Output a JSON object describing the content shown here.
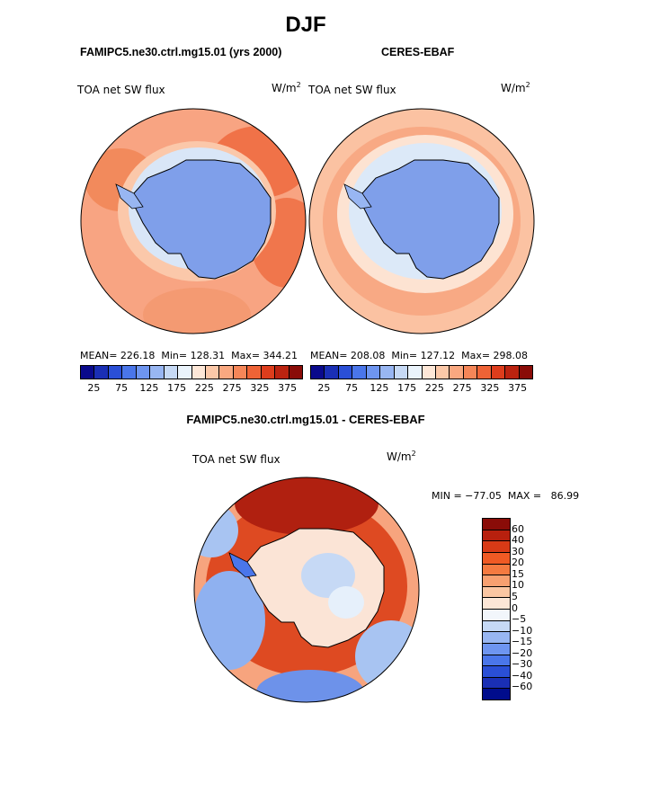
{
  "figure": {
    "season_title": "DJF",
    "units": "W/m",
    "units_exp": "2"
  },
  "panels": [
    {
      "title": "FAMIPC5.ne30.ctrl.mg15.01 (yrs 2000)",
      "variable": "TOA net SW flux",
      "stats": "MEAN= 226.18  Min= 128.31  Max= 344.21"
    },
    {
      "title": "CERES-EBAF",
      "variable": "TOA net SW flux",
      "stats": "MEAN= 208.08  Min= 127.12  Max= 298.08"
    }
  ],
  "diff_panel": {
    "title": "FAMIPC5.ne30.ctrl.mg15.01 - CERES-EBAF",
    "variable": "TOA net SW flux",
    "minmax": "MIN = −77.05  MAX =   86.99"
  },
  "colorbar_abs": {
    "colors": [
      "#0a0a8c",
      "#1a2fb5",
      "#2a4fd6",
      "#4a76ea",
      "#6e95f0",
      "#98b6f2",
      "#c6d9f5",
      "#eaf3fb",
      "#fde7d7",
      "#fbc8a8",
      "#f9a880",
      "#f58658",
      "#ee6336",
      "#de3d1c",
      "#bb2310",
      "#8a0c08"
    ],
    "tick_labels": [
      "25",
      "75",
      "125",
      "175",
      "225",
      "275",
      "325",
      "375"
    ]
  },
  "colorbar_diff": {
    "colors": [
      "#8a0c08",
      "#b8200e",
      "#d83a16",
      "#f05a24",
      "#f57a40",
      "#f8a070",
      "#fbc6a2",
      "#fde6d6",
      "#f2f6fb",
      "#c6d9f5",
      "#98b6f2",
      "#6e95f0",
      "#4a76ea",
      "#2a4fd6",
      "#1a2fb5",
      "#000c8c"
    ],
    "tick_labels": [
      "60",
      "40",
      "30",
      "20",
      "15",
      "10",
      "5",
      "0",
      "−5",
      "−10",
      "−15",
      "−20",
      "−30",
      "−40",
      "−60"
    ]
  },
  "map_data": {
    "projection": "south-polar-stereographic",
    "region": "Antarctica / Southern Ocean"
  }
}
